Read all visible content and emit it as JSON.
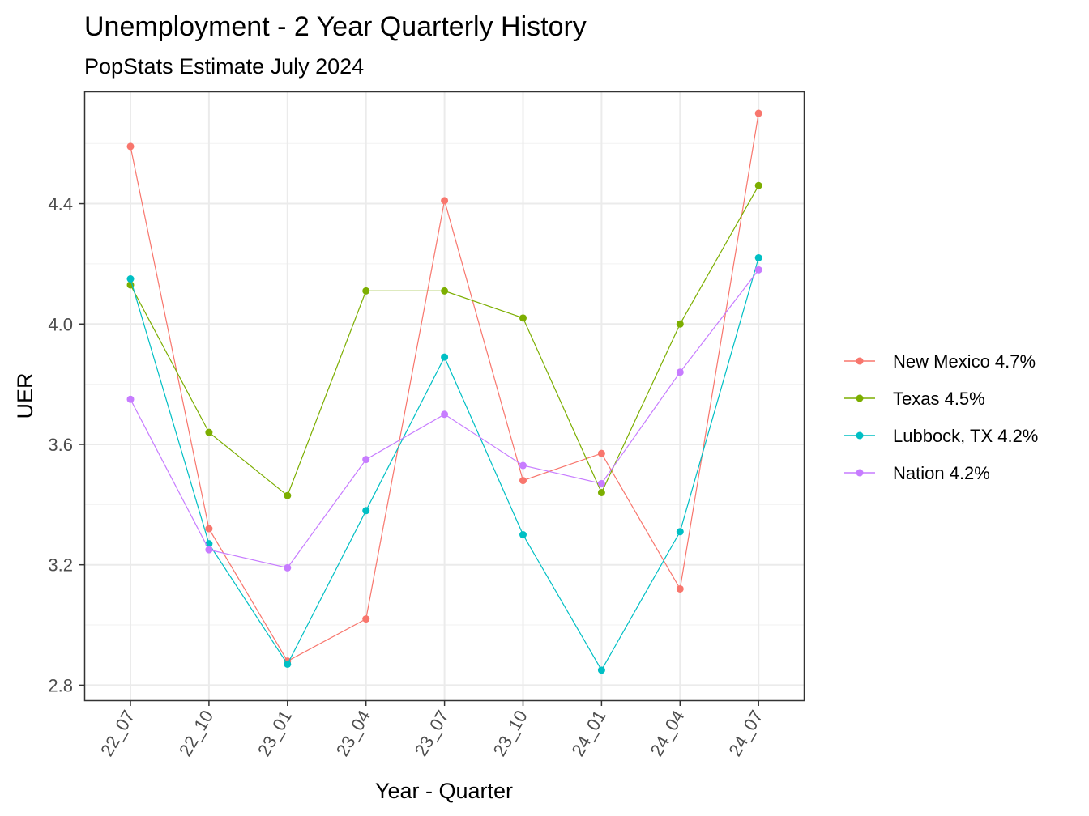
{
  "chart_data": {
    "type": "line",
    "title": "Unemployment - 2 Year Quarterly History",
    "subtitle": "PopStats Estimate July 2024",
    "xlabel": "Year - Quarter",
    "ylabel": "UER",
    "categories": [
      "22_07",
      "22_10",
      "23_01",
      "23_04",
      "23_07",
      "23_10",
      "24_01",
      "24_04",
      "24_07"
    ],
    "y_ticks": [
      "2.8",
      "3.2",
      "3.6",
      "4.0",
      "4.4"
    ],
    "ylim": [
      2.75,
      4.77
    ],
    "grid": true,
    "legend_position": "right",
    "series": [
      {
        "name": "New Mexico 4.7%",
        "color": "#F8766D",
        "values": [
          4.59,
          3.32,
          2.88,
          3.02,
          4.41,
          3.48,
          3.57,
          3.12,
          4.7
        ]
      },
      {
        "name": "Texas 4.5%",
        "color": "#7CAE00",
        "values": [
          4.13,
          3.64,
          3.43,
          4.11,
          4.11,
          4.02,
          3.44,
          4.0,
          4.46
        ]
      },
      {
        "name": "Lubbock, TX 4.2%",
        "color": "#00BFC4",
        "values": [
          4.15,
          3.27,
          2.87,
          3.38,
          3.89,
          3.3,
          2.85,
          3.31,
          4.22
        ]
      },
      {
        "name": "Nation 4.2%",
        "color": "#C77CFF",
        "values": [
          3.75,
          3.25,
          3.19,
          3.55,
          3.7,
          3.53,
          3.47,
          3.84,
          4.18
        ]
      }
    ]
  }
}
